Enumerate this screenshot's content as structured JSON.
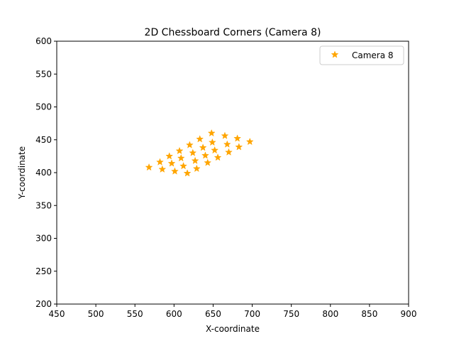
{
  "chart_data": {
    "type": "scatter",
    "title": "2D Chessboard Corners (Camera 8)",
    "xlabel": "X-coordinate",
    "ylabel": "Y-coordinate",
    "xlim": [
      450,
      900
    ],
    "ylim": [
      200,
      600
    ],
    "xticks": [
      "450",
      "500",
      "550",
      "600",
      "650",
      "700",
      "750",
      "800",
      "850",
      "900"
    ],
    "yticks": [
      "200",
      "250",
      "300",
      "350",
      "400",
      "450",
      "500",
      "550",
      "600"
    ],
    "grid": false,
    "legend_position": "top-right",
    "marker": "star",
    "color": "#ffa500",
    "series": [
      {
        "name": "Camera 8",
        "points": [
          [
            568,
            408
          ],
          [
            585,
            405
          ],
          [
            601,
            402
          ],
          [
            617,
            399
          ],
          [
            629,
            406
          ],
          [
            582,
            416
          ],
          [
            597,
            414
          ],
          [
            612,
            410
          ],
          [
            627,
            418
          ],
          [
            643,
            415
          ],
          [
            594,
            425
          ],
          [
            609,
            422
          ],
          [
            624,
            430
          ],
          [
            640,
            426
          ],
          [
            656,
            423
          ],
          [
            607,
            433
          ],
          [
            620,
            442
          ],
          [
            637,
            438
          ],
          [
            652,
            434
          ],
          [
            670,
            431
          ],
          [
            633,
            451
          ],
          [
            649,
            446
          ],
          [
            668,
            443
          ],
          [
            683,
            439
          ],
          [
            648,
            460
          ],
          [
            665,
            456
          ],
          [
            681,
            452
          ],
          [
            697,
            447
          ]
        ]
      }
    ]
  }
}
